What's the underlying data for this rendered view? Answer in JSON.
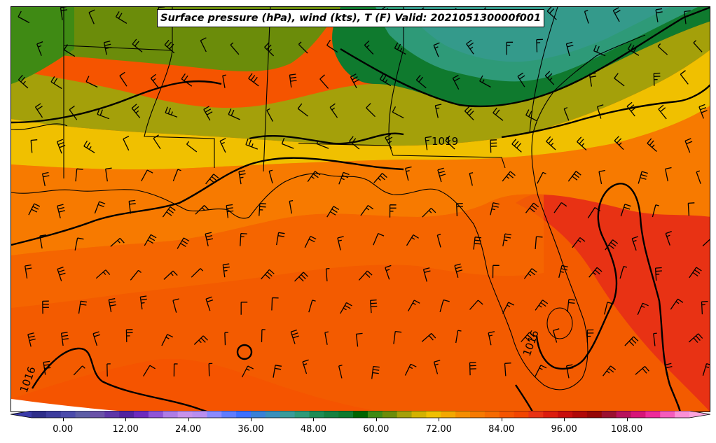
{
  "title": "Surface pressure (hPa), wind (kts), T (F) Valid: 202105130000f001",
  "isobar_labels": [
    {
      "text": "1019"
    },
    {
      "text": "1016"
    },
    {
      "text": "1016"
    }
  ],
  "colorbar": {
    "min": -6,
    "max": 120,
    "step": 3,
    "tick_labels": [
      "0.00",
      "12.00",
      "24.00",
      "36.00",
      "48.00",
      "60.00",
      "72.00",
      "84.00",
      "96.00",
      "108.00"
    ],
    "tick_values": [
      0,
      12,
      24,
      36,
      48,
      60,
      72,
      84,
      96,
      108
    ],
    "colors": [
      "#2e2e8a",
      "#3d3d9e",
      "#4b4bab",
      "#5d5da6",
      "#6a52a8",
      "#5e36a8",
      "#5223a0",
      "#6d2bbd",
      "#8f54d6",
      "#ae7ce6",
      "#c792ec",
      "#b98ef0",
      "#8a8aff",
      "#5f7cff",
      "#3d6fff",
      "#3a80d8",
      "#3a8fbc",
      "#3a9b9a",
      "#2e9a78",
      "#1f8c55",
      "#168040",
      "#0f7a2e",
      "#006400",
      "#3f8a14",
      "#6b8c0a",
      "#a4a00a",
      "#d3b200",
      "#f0c000",
      "#f3a800",
      "#f58e00",
      "#f77a00",
      "#f66a00",
      "#f55400",
      "#f24500",
      "#e83214",
      "#dc1c0e",
      "#c80d0d",
      "#b00808",
      "#960606",
      "#9b1030",
      "#b8125c",
      "#d71478",
      "#ee2a9a",
      "#f55bbd",
      "#fb8fd6"
    ],
    "under_color": "#3a3aa8",
    "over_color": "#fca5dd"
  }
}
